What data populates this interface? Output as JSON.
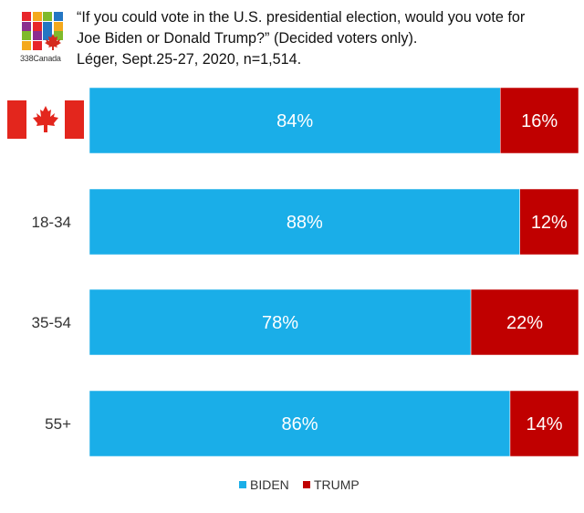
{
  "logo": {
    "text": "338Canada",
    "colors": [
      "#e8262a",
      "#f4a91c",
      "#7fba2b",
      "#2476c3",
      "#8b2d8f",
      "#e8262a",
      "#2476c3",
      "#f4a91c",
      "#7fba2b",
      "#8b2d8f",
      "#2476c3",
      "#7fba2b",
      "#f4a91c",
      "#e8262a",
      "#8b2d8f",
      "#ffffff"
    ],
    "leaf_color": "#d52b1e"
  },
  "chart_data": {
    "type": "bar",
    "orientation": "horizontal",
    "stacked": true,
    "title_lines": [
      "“If you could vote in the U.S. presidential election, would you vote for",
      "Joe Biden or Donald Trump?” (Decided voters only).",
      "Léger, Sept.25-27, 2020, n=1,514."
    ],
    "categories": [
      "Canada",
      "18-34",
      "35-54",
      "55+"
    ],
    "category_icons": [
      "canada-flag",
      "",
      "",
      ""
    ],
    "series": [
      {
        "name": "BIDEN",
        "color": "#1aaee8",
        "values": [
          84,
          88,
          78,
          86
        ],
        "labels": [
          "84%",
          "88%",
          "78%",
          "86%"
        ]
      },
      {
        "name": "TRUMP",
        "color": "#c00000",
        "values": [
          16,
          12,
          22,
          14
        ],
        "labels": [
          "16%",
          "12%",
          "22%",
          "14%"
        ]
      }
    ],
    "xlim": [
      0,
      100
    ],
    "grid": false,
    "legend_position": "bottom-center"
  }
}
